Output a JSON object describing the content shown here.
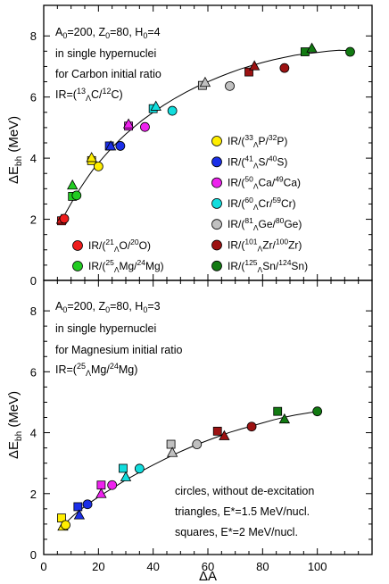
{
  "chart_data": [
    {
      "type": "scatter",
      "panel": "top",
      "xlabel": "",
      "ylabel": "ΔE_bh (MeV)",
      "xlim": [
        0,
        120
      ],
      "ylim": [
        0,
        9
      ],
      "x_ticks": [
        "0",
        "20",
        "40",
        "60",
        "80",
        "100"
      ],
      "y_ticks": [
        "0",
        "2",
        "4",
        "6",
        "8"
      ],
      "annotation_lines": [
        {
          "text": "A₀=200, Z₀=80, H₀=4"
        },
        {
          "text": "in single hypernuclei"
        },
        {
          "text": "for Carbon initial ratio"
        },
        {
          "text": "IR=(¹³ΛC/¹²C)"
        }
      ],
      "curve": {
        "x": [
          6,
          8,
          10,
          12,
          14,
          16,
          18,
          20,
          22,
          24,
          26,
          28,
          30,
          33,
          36,
          40,
          44,
          48,
          52,
          56,
          60,
          64,
          68,
          72,
          76,
          80,
          84,
          88,
          92,
          96,
          100,
          104,
          108,
          112
        ],
        "y": [
          1.85,
          2.2,
          2.52,
          2.83,
          3.1,
          3.37,
          3.62,
          3.84,
          4.05,
          4.25,
          4.44,
          4.62,
          4.79,
          5.02,
          5.24,
          5.5,
          5.74,
          5.96,
          6.16,
          6.34,
          6.5,
          6.65,
          6.79,
          6.92,
          7.03,
          7.13,
          7.22,
          7.3,
          7.37,
          7.42,
          7.46,
          7.5,
          7.53,
          7.52
        ]
      },
      "series": [
        {
          "name": "IR/(²¹ΛO/²⁰O)",
          "color": "#ee1c1c",
          "circle": [
            [
              7.5,
              2.02
            ]
          ],
          "triangle": [
            [
              6.5,
              2.0
            ]
          ],
          "square": [
            [
              6.5,
              1.95
            ]
          ]
        },
        {
          "name": "IR/(²⁵ΛMg/²⁴Mg)",
          "color": "#22cc22",
          "circle": [
            [
              12,
              2.78
            ]
          ],
          "triangle": [
            [
              10.5,
              3.12
            ]
          ],
          "square": [
            [
              10.5,
              2.75
            ]
          ]
        },
        {
          "name": "IR/(³³ΛP/³²P)",
          "color": "#ffee00",
          "circle": [
            [
              20,
              3.73
            ]
          ],
          "triangle": [
            [
              17.5,
              4.02
            ]
          ],
          "square": [
            [
              17.5,
              3.92
            ]
          ]
        },
        {
          "name": "IR/(⁴¹ΛS/⁴⁰S)",
          "color": "#1b2fe8",
          "circle": [
            [
              28,
              4.4
            ]
          ],
          "triangle": [
            [
              24.5,
              4.4
            ]
          ],
          "square": [
            [
              24,
              4.4
            ]
          ]
        },
        {
          "name": "IR/(⁵⁰ΛCa/⁴⁹Ca)",
          "color": "#ee22ee",
          "circle": [
            [
              37,
              5.02
            ]
          ],
          "triangle": [
            [
              31,
              5.12
            ]
          ],
          "square": [
            [
              31,
              5.05
            ]
          ]
        },
        {
          "name": "IR/(⁶⁰ΛCr/⁵⁹Cr)",
          "color": "#11dddd",
          "circle": [
            [
              47,
              5.55
            ]
          ],
          "triangle": [
            [
              41,
              5.7
            ]
          ],
          "square": [
            [
              40,
              5.62
            ]
          ]
        },
        {
          "name": "IR/(⁸¹ΛGe/⁸⁰Ge)",
          "color": "#c0c0c0",
          "circle": [
            [
              68,
              6.36
            ]
          ],
          "triangle": [
            [
              59,
              6.48
            ]
          ],
          "square": [
            [
              58,
              6.38
            ]
          ]
        },
        {
          "name": "IR/(¹⁰¹ΛZr/¹⁰⁰Zr)",
          "color": "#9c1212",
          "circle": [
            [
              88,
              6.95
            ]
          ],
          "triangle": [
            [
              77,
              7.02
            ]
          ],
          "square": [
            [
              75,
              6.82
            ]
          ]
        },
        {
          "name": "IR/(¹²⁵ΛSn/¹²⁴Sn)",
          "color": "#127a12",
          "circle": [
            [
              112,
              7.48
            ]
          ],
          "triangle": [
            [
              98,
              7.6
            ]
          ],
          "square": [
            [
              95.5,
              7.48
            ]
          ]
        }
      ]
    },
    {
      "type": "scatter",
      "panel": "bottom",
      "xlabel": "ΔA",
      "ylabel": "ΔE_bh (MeV)",
      "xlim": [
        0,
        120
      ],
      "ylim": [
        0,
        9
      ],
      "x_ticks": [
        "0",
        "20",
        "40",
        "60",
        "80",
        "100"
      ],
      "y_ticks": [
        "0",
        "2",
        "4",
        "6",
        "8"
      ],
      "annotation_lines": [
        {
          "text": "A₀=200, Z₀=80, H₀=3"
        },
        {
          "text": "in single hypernuclei"
        },
        {
          "text": "for Magnesium initial ratio"
        },
        {
          "text": "IR=(²⁵ΛMg/²⁴Mg)"
        }
      ],
      "note_lines": [
        {
          "text": "circles, without de-excitation"
        },
        {
          "text": "triangles, E*=1.5 MeV/nucl."
        },
        {
          "text": "squares, E*=2 MeV/nucl."
        }
      ],
      "curve": {
        "x": [
          7,
          9,
          11,
          13,
          15,
          17,
          19,
          21,
          23,
          25,
          27,
          30,
          33,
          36,
          40,
          44,
          48,
          52,
          56,
          60,
          64,
          68,
          72,
          76,
          80,
          84,
          88,
          92,
          96,
          100
        ],
        "y": [
          0.92,
          1.12,
          1.29,
          1.44,
          1.58,
          1.71,
          1.83,
          1.95,
          2.06,
          2.17,
          2.28,
          2.45,
          2.6,
          2.75,
          2.94,
          3.12,
          3.3,
          3.46,
          3.61,
          3.75,
          3.88,
          4.01,
          4.12,
          4.22,
          4.32,
          4.42,
          4.51,
          4.58,
          4.64,
          4.7
        ]
      },
      "series": [
        {
          "name": "IR/(²¹ΛO/²⁰O)",
          "color": "#ffee00",
          "circle": [
            [
              8,
              0.97
            ]
          ],
          "triangle": [
            [
              7,
              0.93
            ]
          ],
          "square": [
            [
              6.5,
              1.2
            ]
          ]
        },
        {
          "name": "IR/(²⁵ΛMg/²⁴Mg)",
          "color": "#1b2fe8",
          "circle": [
            [
              16,
              1.65
            ]
          ],
          "triangle": [
            [
              13,
              1.3
            ]
          ],
          "square": [
            [
              12.5,
              1.57
            ]
          ]
        },
        {
          "name": "IR/(³³ΛP/³²P)",
          "color": "#ee22ee",
          "circle": [
            [
              25,
              2.28
            ]
          ],
          "triangle": [
            [
              21,
              2.0
            ]
          ],
          "square": [
            [
              21,
              2.28
            ]
          ]
        },
        {
          "name": "IR/(⁴¹ΛS/⁴⁰S)",
          "color": "#11dddd",
          "circle": [
            [
              35,
              2.82
            ]
          ],
          "triangle": [
            [
              30,
              2.55
            ]
          ],
          "square": [
            [
              29,
              2.83
            ]
          ]
        },
        {
          "name": "IR/(⁵⁰ΛCa/⁴⁹Ca)",
          "color": "#c0c0c0",
          "circle": [
            [
              56,
              3.62
            ]
          ],
          "triangle": [
            [
              47,
              3.35
            ]
          ],
          "square": [
            [
              46.5,
              3.62
            ]
          ]
        },
        {
          "name": "IR/(⁶⁰ΛCr/⁵⁹Cr)",
          "color": "#9c1212",
          "circle": [
            [
              76,
              4.2
            ]
          ],
          "triangle": [
            [
              66,
              3.9
            ]
          ],
          "square": [
            [
              63.5,
              4.05
            ]
          ]
        },
        {
          "name": "IR/(⁸¹ΛGe/⁸⁰Ge)",
          "color": "#127a12",
          "circle": [
            [
              100,
              4.7
            ]
          ],
          "triangle": [
            [
              88,
              4.45
            ]
          ],
          "square": [
            [
              85.5,
              4.7
            ]
          ]
        }
      ]
    }
  ],
  "legend": {
    "right": [
      {
        "color": "#ffee00",
        "pre": "IR/(",
        "sup1": "33",
        "sub": "Λ",
        "mid": "P/",
        "sup2": "32",
        "post": "P)"
      },
      {
        "color": "#1b2fe8",
        "pre": "IR/(",
        "sup1": "41",
        "sub": "Λ",
        "mid": "S/",
        "sup2": "40",
        "post": "S)"
      },
      {
        "color": "#ee22ee",
        "pre": "IR/(",
        "sup1": "50",
        "sub": "Λ",
        "mid": "Ca/",
        "sup2": "49",
        "post": "Ca)"
      },
      {
        "color": "#11dddd",
        "pre": "IR/(",
        "sup1": "60",
        "sub": "Λ",
        "mid": "Cr/",
        "sup2": "59",
        "post": "Cr)"
      },
      {
        "color": "#c0c0c0",
        "pre": "IR/(",
        "sup1": "81",
        "sub": "Λ",
        "mid": "Ge/",
        "sup2": "80",
        "post": "Ge)"
      },
      {
        "color": "#9c1212",
        "pre": "IR/(",
        "sup1": "101",
        "sub": "Λ",
        "mid": "Zr/",
        "sup2": "100",
        "post": "Zr)"
      },
      {
        "color": "#127a12",
        "pre": "IR/(",
        "sup1": "125",
        "sub": "Λ",
        "mid": "Sn/",
        "sup2": "124",
        "post": "Sn)"
      }
    ],
    "left": [
      {
        "color": "#ee1c1c",
        "pre": "IR/(",
        "sup1": "21",
        "sub": "Λ",
        "mid": "O/",
        "sup2": "20",
        "post": "O)"
      },
      {
        "color": "#22cc22",
        "pre": "IR/(",
        "sup1": "25",
        "sub": "Λ",
        "mid": "Mg/",
        "sup2": "24",
        "post": "Mg)"
      }
    ]
  },
  "text": {
    "top_ann": [
      "A",
      "0",
      "=200, Z",
      "0",
      "=80, H",
      "0",
      "=4"
    ],
    "top_ann2": "in single hypernuclei",
    "top_ann3": "for Carbon initial ratio",
    "top_ann4": [
      "IR=(",
      "13",
      "Λ",
      "C/",
      "12",
      "C)"
    ],
    "bot_ann": [
      "A",
      "0",
      "=200, Z",
      "0",
      "=80, H",
      "0",
      "=3"
    ],
    "bot_ann2": "in single hypernuclei",
    "bot_ann3": "for Magnesium initial ratio",
    "bot_ann4": [
      "IR=(",
      "25",
      "Λ",
      "Mg/",
      "24",
      "Mg)"
    ],
    "note1": "circles, without de-excitation",
    "note2": "triangles, E*=1.5 MeV/nucl.",
    "note3": "squares, E*=2 MeV/nucl.",
    "ylabel_main": "ΔE",
    "ylabel_sub": "bh",
    "ylabel_unit": " (MeV)",
    "xlabel": "ΔA"
  }
}
